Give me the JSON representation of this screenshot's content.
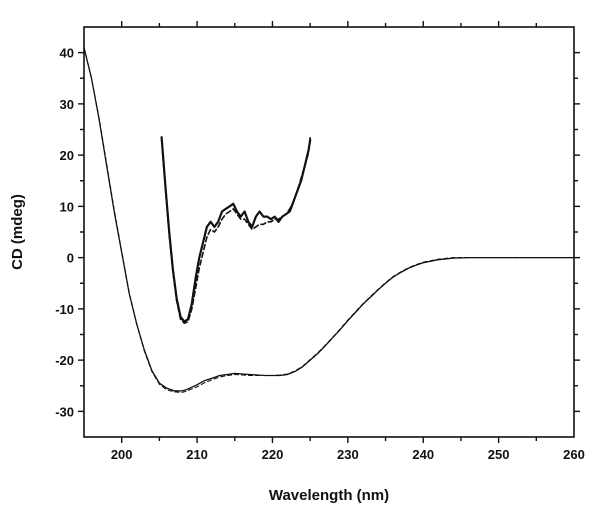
{
  "chart_data": {
    "type": "line",
    "title": "",
    "xlabel": "Wavelength (nm)",
    "ylabel": "CD (mdeg)",
    "xlim": [
      195,
      260
    ],
    "ylim": [
      -35,
      45
    ],
    "xticks": [
      200,
      210,
      220,
      230,
      240,
      250,
      260
    ],
    "yticks": [
      -30,
      -20,
      -10,
      0,
      10,
      20,
      30,
      40
    ],
    "grid": false,
    "legend": "none",
    "series": [
      {
        "style": "solid",
        "x": [
          195,
          196,
          197,
          198,
          199,
          200,
          201,
          202,
          203,
          204,
          205,
          206,
          207,
          208,
          208.5,
          209,
          210,
          211,
          212,
          213,
          214,
          215,
          216,
          217,
          218,
          219,
          220,
          221,
          222,
          223,
          224,
          225,
          226,
          227,
          228,
          229,
          230,
          231,
          232,
          233,
          234,
          235,
          236,
          237,
          238,
          239,
          240,
          242,
          244,
          246,
          248,
          250,
          255,
          260
        ],
        "y": [
          41,
          35,
          27,
          18,
          9,
          1,
          -7,
          -13,
          -18,
          -22,
          -24.5,
          -25.5,
          -26,
          -26,
          -25.8,
          -25.5,
          -24.8,
          -24,
          -23.5,
          -23,
          -22.8,
          -22.6,
          -22.7,
          -22.8,
          -22.9,
          -23,
          -23,
          -23,
          -22.8,
          -22.2,
          -21.3,
          -20,
          -18.7,
          -17.2,
          -15.6,
          -14,
          -12.3,
          -10.7,
          -9.1,
          -7.7,
          -6.3,
          -5,
          -3.8,
          -2.9,
          -2.1,
          -1.5,
          -1,
          -0.4,
          -0.1,
          0,
          0,
          0,
          0,
          0
        ]
      },
      {
        "style": "dashed",
        "x": [
          195,
          196,
          197,
          198,
          199,
          200,
          201,
          202,
          203,
          204,
          205,
          206,
          207,
          208,
          208.5,
          209,
          210,
          211,
          212,
          213,
          214,
          215,
          216,
          217,
          218,
          219,
          220,
          221,
          222,
          223,
          224,
          225,
          226,
          227,
          228,
          229,
          230,
          231,
          232,
          233,
          234,
          235,
          236,
          237,
          238,
          239,
          240,
          242,
          244,
          246,
          248,
          250,
          255,
          260
        ],
        "y": [
          41,
          35,
          27.2,
          18.3,
          9.3,
          1.2,
          -6.8,
          -13,
          -18.2,
          -22.2,
          -24.7,
          -25.8,
          -26.2,
          -26.3,
          -26.1,
          -25.8,
          -25.2,
          -24.4,
          -23.8,
          -23.3,
          -23,
          -22.8,
          -22.9,
          -23,
          -23,
          -23,
          -23,
          -22.9,
          -22.7,
          -22.1,
          -21.2,
          -19.9,
          -18.6,
          -17.1,
          -15.5,
          -13.9,
          -12.2,
          -10.6,
          -9,
          -7.6,
          -6.2,
          -4.9,
          -3.7,
          -2.8,
          -2,
          -1.4,
          -0.9,
          -0.3,
          0,
          0,
          0,
          0,
          0,
          0
        ]
      },
      {
        "style": "solid-thick",
        "x": [
          205.3,
          205.8,
          206.3,
          206.8,
          207.3,
          207.8,
          208.3,
          208.8,
          209.3,
          209.8,
          210.3,
          210.8,
          211.3,
          211.8,
          212.3,
          212.8,
          213.3,
          213.8,
          214.3,
          214.8,
          215.3,
          215.8,
          216.3,
          216.8,
          217.3,
          217.8,
          218.3,
          218.8,
          219.3,
          219.8,
          220.3,
          220.8,
          221.3,
          221.8,
          222.3,
          222.8,
          223.3,
          223.8,
          224.3,
          224.8,
          225
        ],
        "y": [
          23.5,
          14,
          5,
          -2.5,
          -8,
          -11.5,
          -12.5,
          -12,
          -9,
          -4,
          0,
          3,
          6,
          7,
          6,
          7,
          9,
          9.5,
          10,
          10.5,
          9,
          8,
          9,
          7,
          6,
          8,
          9,
          8,
          8,
          7.5,
          8,
          7,
          8,
          8.5,
          9,
          11,
          13,
          15,
          18,
          21,
          23
        ]
      },
      {
        "style": "dashed-thick",
        "x": [
          205.3,
          205.8,
          206.3,
          206.8,
          207.3,
          207.8,
          208.3,
          208.8,
          209.3,
          209.8,
          210.3,
          210.8,
          211.3,
          211.8,
          212.3,
          212.8,
          213.3,
          213.8,
          214.3,
          214.8,
          215.3,
          215.8,
          216.3,
          216.8,
          217.3,
          217.8,
          218.3,
          218.8,
          219.3,
          219.8,
          220.3,
          220.8,
          221.3,
          221.8,
          222.3,
          222.8,
          223.3,
          223.8,
          224.3,
          224.8,
          225
        ],
        "y": [
          23,
          13.5,
          4.5,
          -3,
          -8.5,
          -12,
          -12.8,
          -12.5,
          -10,
          -6,
          -2,
          1,
          4,
          5.5,
          5,
          6,
          7.5,
          8.5,
          9,
          9.5,
          8.5,
          7.5,
          7.5,
          6.5,
          5.5,
          6,
          6.5,
          6.5,
          7,
          7,
          7.5,
          7.5,
          8,
          8.5,
          9.5,
          11,
          13,
          15.5,
          18,
          20.5,
          23.5
        ]
      }
    ]
  }
}
